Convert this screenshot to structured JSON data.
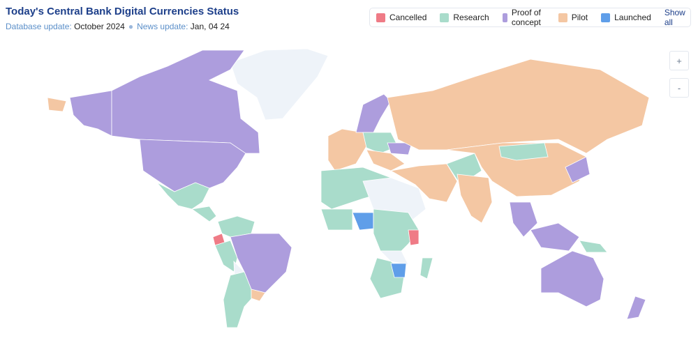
{
  "header": {
    "title": "Today's Central Bank Digital Currencies Status",
    "database_update_label": "Database update:",
    "database_update": "October 2024",
    "news_update_label": "News update:",
    "news_update": "Jan, 04 24"
  },
  "legend": {
    "items": [
      {
        "label": "Cancelled",
        "color": "#ef7b86"
      },
      {
        "label": "Research",
        "color": "#a9dccb"
      },
      {
        "label": "Proof of concept",
        "color": "#ad9ddd"
      },
      {
        "label": "Pilot",
        "color": "#f4c7a3"
      },
      {
        "label": "Launched",
        "color": "#5f9ee9"
      }
    ],
    "show_all": "Show all"
  },
  "zoom": {
    "in": "+",
    "out": "-"
  }
}
